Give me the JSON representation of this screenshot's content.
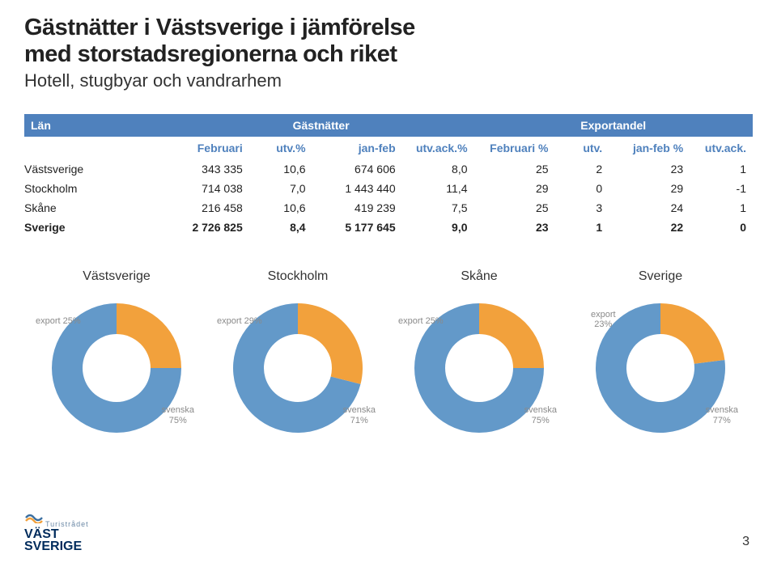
{
  "title_line1": "Gästnätter i Västsverige i jämförelse",
  "title_line2": "med storstadsregionerna och riket",
  "subtitle": "Hotell, stugbyar och vandrarhem",
  "table": {
    "hdr1": {
      "lan": "Län",
      "gast": "Gästnätter",
      "exp": "Exportandel"
    },
    "hdr2": [
      "Februari",
      "utv.%",
      "jan-feb",
      "utv.ack.%",
      "Februari %",
      "utv.",
      "jan-feb %",
      "utv.ack."
    ],
    "rows": [
      {
        "name": "Västsverige",
        "c": [
          "343 335",
          "10,6",
          "674 606",
          "8,0",
          "25",
          "2",
          "23",
          "1"
        ],
        "bold": false
      },
      {
        "name": "Stockholm",
        "c": [
          "714 038",
          "7,0",
          "1 443 440",
          "11,4",
          "29",
          "0",
          "29",
          "-1"
        ],
        "bold": false
      },
      {
        "name": "Skåne",
        "c": [
          "216 458",
          "10,6",
          "419 239",
          "7,5",
          "25",
          "3",
          "24",
          "1"
        ],
        "bold": false
      },
      {
        "name": "Sverige",
        "c": [
          "2 726 825",
          "8,4",
          "5 177 645",
          "9,0",
          "23",
          "1",
          "22",
          "0"
        ],
        "bold": true
      }
    ]
  },
  "charts": [
    {
      "title": "Västsverige",
      "export": 25,
      "export_lbl": "export 25%",
      "sv_lbl": "svenska\n75%"
    },
    {
      "title": "Stockholm",
      "export": 29,
      "export_lbl": "export 29%",
      "sv_lbl": "svenska\n71%"
    },
    {
      "title": "Skåne",
      "export": 25,
      "export_lbl": "export 25%",
      "sv_lbl": "svenska\n75%"
    },
    {
      "title": "Sverige",
      "export": 23,
      "export_lbl": "export\n23%",
      "sv_lbl": "svenska\n77%"
    }
  ],
  "colors": {
    "blue": "#6399c9",
    "orange": "#f2a13c",
    "header_bg": "#4f81bd",
    "label": "#8a8a8a"
  },
  "logo": {
    "line1": "Turistrådet",
    "line2": "VÄST",
    "line3": "SVERIGE"
  },
  "page": "3",
  "donut": {
    "outer_r": 80,
    "inner_r": 42
  }
}
